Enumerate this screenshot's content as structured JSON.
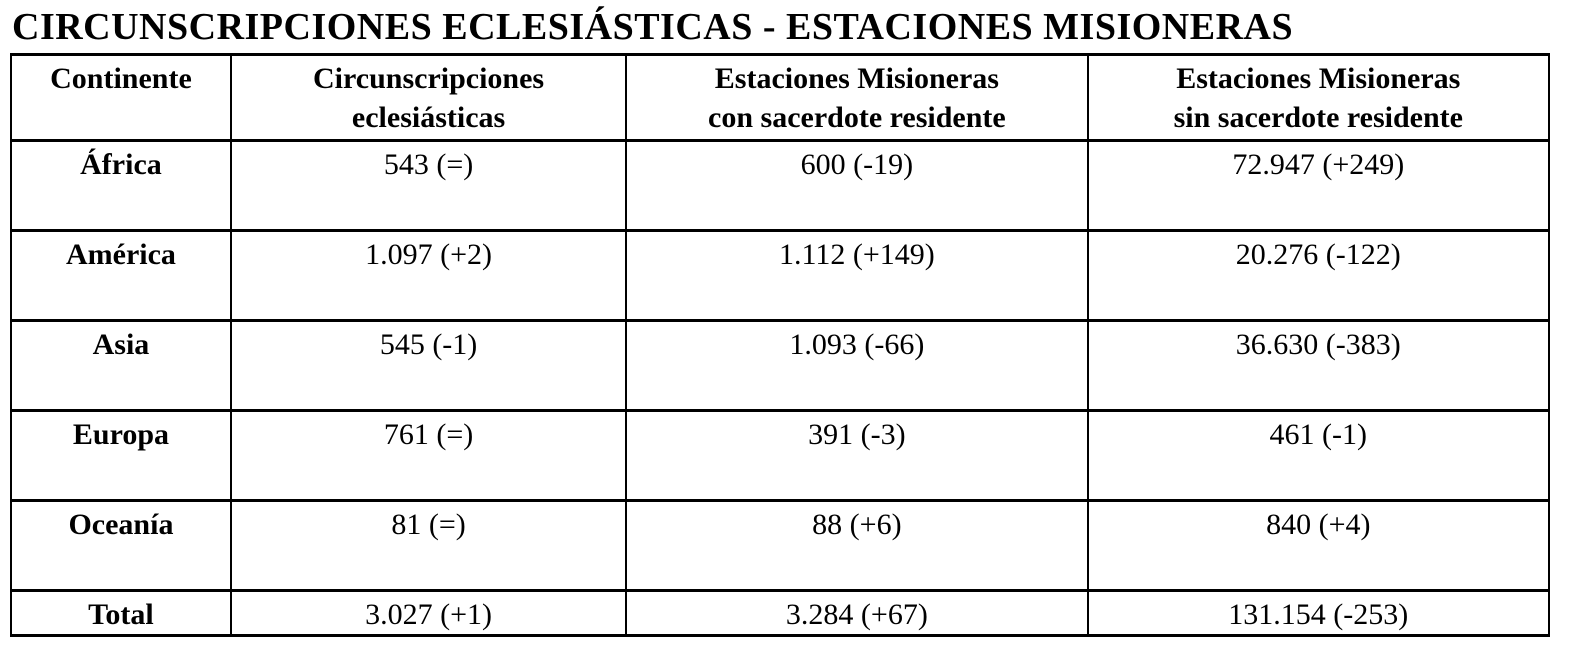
{
  "title": "CIRCUNSCRIPCIONES ECLESIÁSTICAS - ESTACIONES MISIONERAS",
  "table": {
    "columns": [
      {
        "line1": "Continente",
        "line2": ""
      },
      {
        "line1": "Circunscripciones",
        "line2": "eclesiásticas"
      },
      {
        "line1": "Estaciones Misioneras",
        "line2": "con sacerdote residente"
      },
      {
        "line1": "Estaciones Misioneras",
        "line2": "sin sacerdote residente"
      }
    ],
    "rows": [
      {
        "continent": "África",
        "circunscripciones": "543 (=)",
        "con_sacerdote": "600 (-19)",
        "sin_sacerdote": "72.947 (+249)"
      },
      {
        "continent": "América",
        "circunscripciones": "1.097 (+2)",
        "con_sacerdote": "1.112 (+149)",
        "sin_sacerdote": "20.276 (-122)"
      },
      {
        "continent": "Asia",
        "circunscripciones": "545 (-1)",
        "con_sacerdote": "1.093 (-66)",
        "sin_sacerdote": "36.630 (-383)"
      },
      {
        "continent": "Europa",
        "circunscripciones": "761 (=)",
        "con_sacerdote": "391 (-3)",
        "sin_sacerdote": "461 (-1)"
      },
      {
        "continent": "Oceanía",
        "circunscripciones": "81 (=)",
        "con_sacerdote": "88 (+6)",
        "sin_sacerdote": "840 (+4)"
      },
      {
        "continent": "Total",
        "circunscripciones": "3.027 (+1)",
        "con_sacerdote": "3.284 (+67)",
        "sin_sacerdote": "131.154 (-253)"
      }
    ],
    "colors": {
      "border": "#000000",
      "text": "#000000",
      "background": "#ffffff"
    }
  }
}
